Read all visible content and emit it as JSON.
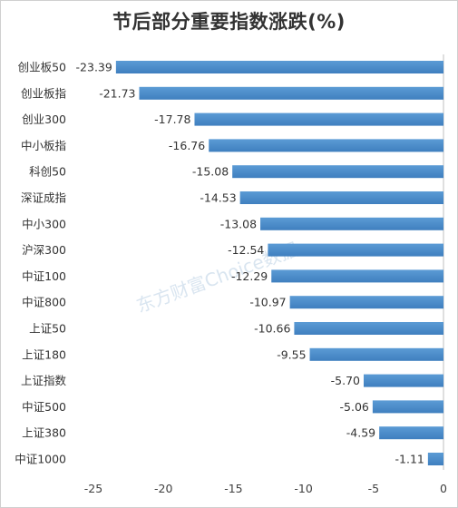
{
  "chart_data": {
    "type": "bar",
    "orientation": "horizontal",
    "title": "节后部分重要指数涨跌(%)",
    "categories": [
      "创业板50",
      "创业板指",
      "创业300",
      "中小板指",
      "科创50",
      "深证成指",
      "中小300",
      "沪深300",
      "中证100",
      "中证800",
      "上证50",
      "上证180",
      "上证指数",
      "中证500",
      "上证380",
      "中证1000"
    ],
    "values": [
      -23.39,
      -21.73,
      -17.78,
      -16.76,
      -15.08,
      -14.53,
      -13.08,
      -12.54,
      -12.29,
      -10.97,
      -10.66,
      -9.55,
      -5.7,
      -5.06,
      -4.59,
      -1.11
    ],
    "value_labels": [
      "-23.39",
      "-21.73",
      "-17.78",
      "-16.76",
      "-15.08",
      "-14.53",
      "-13.08",
      "-12.54",
      "-12.29",
      "-10.97",
      "-10.66",
      "-9.55",
      "-5.70",
      "-5.06",
      "-4.59",
      "-1.11"
    ],
    "xlim": [
      -25,
      0
    ],
    "x_ticks": [
      -25,
      -20,
      -15,
      -10,
      -5,
      0
    ],
    "x_tick_labels": [
      "-25",
      "-20",
      "-15",
      "-10",
      "-5",
      "0"
    ],
    "grid": false,
    "legend": "none",
    "bar_color": "#5b9bd5",
    "bar_color_dark": "#3f7fbf"
  },
  "watermark": "东方财富Choice数据"
}
